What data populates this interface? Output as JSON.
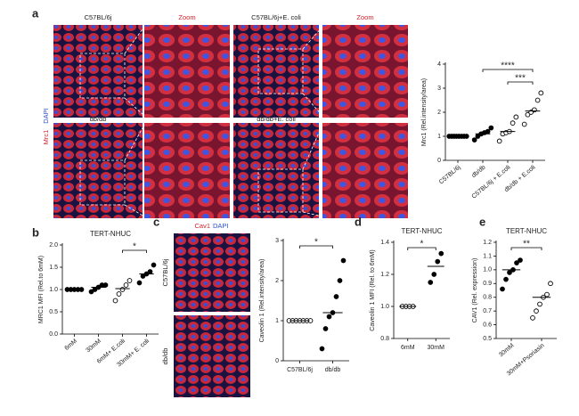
{
  "figure": {
    "panel_labels": [
      "a",
      "b",
      "c",
      "d",
      "e"
    ],
    "a_headers": [
      "C57BL/6j",
      "Zoom",
      "C57BL/6j+E. coli",
      "Zoom"
    ],
    "a_row2": [
      "db/db",
      "db/db+E. coli"
    ],
    "a_stain": [
      "Mrc1",
      "DAPI"
    ],
    "c_stain": [
      "Cav1",
      "DAPI"
    ],
    "c_rows": [
      "C57BL/6j",
      "db/db"
    ]
  },
  "chart_data": [
    {
      "type": "dotplot",
      "ylabel": "Mrc1 (Rel.intensity/area)",
      "categories": [
        "C57BL/6j",
        "db/db",
        "C57BL/6j + E.coli",
        "db/db + E.coli"
      ],
      "values": [
        [
          1,
          1,
          1,
          1,
          1,
          1,
          1,
          1
        ],
        [
          0.85,
          1.0,
          1.1,
          1.15,
          1.2,
          1.35
        ],
        [
          0.8,
          1.1,
          1.15,
          1.2,
          1.55,
          1.8
        ],
        [
          1.5,
          1.9,
          2.0,
          2.1,
          2.5,
          2.8
        ]
      ],
      "means": [
        1,
        1.1,
        1.2,
        2.05
      ],
      "open": [
        false,
        false,
        true,
        true
      ],
      "ylim": [
        0,
        4
      ],
      "yticks": [
        0,
        1,
        2,
        3,
        4
      ],
      "annotations": [
        {
          "text": "****",
          "span": [
            1,
            3
          ]
        },
        {
          "text": "***",
          "span": [
            2,
            3
          ]
        }
      ]
    },
    {
      "type": "dotplot",
      "title": "TERT-NHUC",
      "ylabel": "MRC1 MFI (Rel.to 6mM)",
      "categories": [
        "6mM",
        "30mM",
        "6mM+ E.coli",
        "30mM+ E. coli"
      ],
      "values": [
        [
          1,
          1,
          1,
          1,
          1
        ],
        [
          0.95,
          1.0,
          1.05,
          1.1,
          1.1
        ],
        [
          0.75,
          0.9,
          1.0,
          1.1,
          1.2
        ],
        [
          1.15,
          1.3,
          1.35,
          1.4,
          1.55
        ]
      ],
      "means": [
        1,
        1.05,
        1.02,
        1.35
      ],
      "open": [
        false,
        false,
        true,
        false
      ],
      "ylim": [
        0,
        2
      ],
      "yticks": [
        {
          "value": 0,
          "label": "0.0"
        },
        0.5,
        {
          "value": 1,
          "label": "1.0"
        },
        1.5,
        {
          "value": 2,
          "label": "2.0"
        }
      ],
      "annotations": [
        {
          "text": "*",
          "span": [
            2,
            3
          ]
        }
      ]
    },
    {
      "type": "dotplot",
      "ylabel": "Caveolin 1 (Rel.intensity/area)",
      "categories": [
        "C57BL/6j",
        "db/db"
      ],
      "values": [
        [
          1,
          1,
          1,
          1,
          1,
          1,
          1
        ],
        [
          0.3,
          0.8,
          1.1,
          1.2,
          1.6,
          2.0,
          2.5
        ]
      ],
      "means": [
        1,
        1.2
      ],
      "open": [
        true,
        false
      ],
      "ylim": [
        0,
        3
      ],
      "yticks": [
        0,
        1,
        2,
        3
      ],
      "annotations": [
        {
          "text": "*",
          "span": [
            0,
            1
          ]
        }
      ]
    },
    {
      "type": "dotplot",
      "title": "TERT-NHUC",
      "ylabel": "Caveolin 1 MFI (Rel. to 6mM)",
      "categories": [
        "6mM",
        "30mM"
      ],
      "values": [
        [
          1,
          1,
          1,
          1
        ],
        [
          1.15,
          1.2,
          1.28,
          1.33
        ]
      ],
      "means": [
        1,
        1.25
      ],
      "open": [
        true,
        false
      ],
      "ylim": [
        0.8,
        1.4
      ],
      "yticks": [
        0.8,
        {
          "value": 1,
          "label": "1.0"
        },
        1.2,
        1.4
      ],
      "annotations": [
        {
          "text": "*",
          "span": [
            0,
            1
          ]
        }
      ]
    },
    {
      "type": "dotplot",
      "title": "TERT-NHUC",
      "ylabel": "CAV1 (Rel. expression)",
      "categories": [
        "30mM",
        "30mM+Psoriasin"
      ],
      "values": [
        [
          0.86,
          0.93,
          0.98,
          1.0,
          1.05,
          1.07
        ],
        [
          0.65,
          0.7,
          0.75,
          0.8,
          0.82,
          0.9
        ]
      ],
      "means": [
        1.0,
        0.8
      ],
      "open": [
        false,
        true
      ],
      "ylim": [
        0.5,
        1.2
      ],
      "yticks": [
        0.5,
        0.6,
        0.7,
        0.8,
        0.9,
        {
          "value": 1,
          "label": "1.0"
        },
        1.1,
        1.2
      ],
      "annotations": [
        {
          "text": "**",
          "span": [
            0,
            1
          ]
        }
      ]
    }
  ]
}
